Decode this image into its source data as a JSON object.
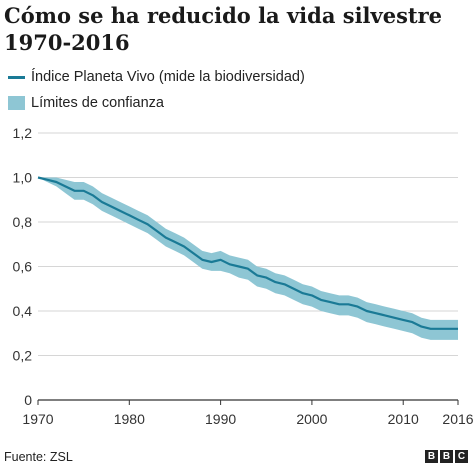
{
  "title": "Cómo se ha reducido la vida silvestre 1970-2016",
  "legend": {
    "line_label": "Índice Planeta Vivo (mide la biodiversidad)",
    "band_label": "Límites de confianza"
  },
  "footer": {
    "source": "Fuente: ZSL",
    "brand_letters": [
      "B",
      "B",
      "C"
    ]
  },
  "colors": {
    "line": "#1a7a96",
    "band": "#8ec6d4",
    "grid": "#d6d6d6",
    "axis": "#333333"
  },
  "chart_data": {
    "type": "line",
    "title": "Cómo se ha reducido la vida silvestre 1970-2016",
    "xlabel": "",
    "ylabel": "",
    "xlim": [
      1970,
      2016
    ],
    "ylim": [
      0,
      1.2
    ],
    "grid": true,
    "legend_placement": "top-left",
    "x_ticks": [
      1970,
      1980,
      1990,
      2000,
      2010,
      2016
    ],
    "y_ticks": [
      0,
      0.2,
      0.4,
      0.6,
      0.8,
      1.0,
      1.2
    ],
    "y_tick_labels": [
      "0",
      "0,2",
      "0,4",
      "0,6",
      "0,8",
      "1,0",
      "1,2"
    ],
    "x": [
      1970,
      1971,
      1972,
      1973,
      1974,
      1975,
      1976,
      1977,
      1978,
      1979,
      1980,
      1981,
      1982,
      1983,
      1984,
      1985,
      1986,
      1987,
      1988,
      1989,
      1990,
      1991,
      1992,
      1993,
      1994,
      1995,
      1996,
      1997,
      1998,
      1999,
      2000,
      2001,
      2002,
      2003,
      2004,
      2005,
      2006,
      2007,
      2008,
      2009,
      2010,
      2011,
      2012,
      2013,
      2014,
      2015,
      2016
    ],
    "series": [
      {
        "name": "Índice Planeta Vivo (mide la biodiversidad)",
        "values": [
          1.0,
          0.99,
          0.98,
          0.96,
          0.94,
          0.94,
          0.92,
          0.89,
          0.87,
          0.85,
          0.83,
          0.81,
          0.79,
          0.76,
          0.73,
          0.71,
          0.69,
          0.66,
          0.63,
          0.62,
          0.63,
          0.61,
          0.6,
          0.59,
          0.56,
          0.55,
          0.53,
          0.52,
          0.5,
          0.48,
          0.47,
          0.45,
          0.44,
          0.43,
          0.43,
          0.42,
          0.4,
          0.39,
          0.38,
          0.37,
          0.36,
          0.35,
          0.33,
          0.32,
          0.32,
          0.32,
          0.32
        ]
      },
      {
        "name": "Límites de confianza",
        "lower": [
          1.0,
          0.98,
          0.96,
          0.93,
          0.9,
          0.9,
          0.88,
          0.85,
          0.83,
          0.81,
          0.79,
          0.77,
          0.75,
          0.72,
          0.69,
          0.67,
          0.65,
          0.62,
          0.59,
          0.58,
          0.58,
          0.57,
          0.55,
          0.54,
          0.51,
          0.5,
          0.48,
          0.47,
          0.45,
          0.43,
          0.42,
          0.4,
          0.39,
          0.38,
          0.38,
          0.37,
          0.35,
          0.34,
          0.33,
          0.32,
          0.31,
          0.3,
          0.28,
          0.27,
          0.27,
          0.27,
          0.27
        ],
        "upper": [
          1.0,
          1.0,
          1.0,
          0.99,
          0.98,
          0.98,
          0.96,
          0.93,
          0.91,
          0.89,
          0.87,
          0.85,
          0.83,
          0.8,
          0.77,
          0.75,
          0.73,
          0.7,
          0.67,
          0.66,
          0.67,
          0.65,
          0.64,
          0.63,
          0.6,
          0.59,
          0.57,
          0.56,
          0.54,
          0.52,
          0.51,
          0.49,
          0.48,
          0.47,
          0.47,
          0.46,
          0.44,
          0.43,
          0.42,
          0.41,
          0.4,
          0.39,
          0.37,
          0.36,
          0.36,
          0.36,
          0.36
        ]
      }
    ]
  }
}
